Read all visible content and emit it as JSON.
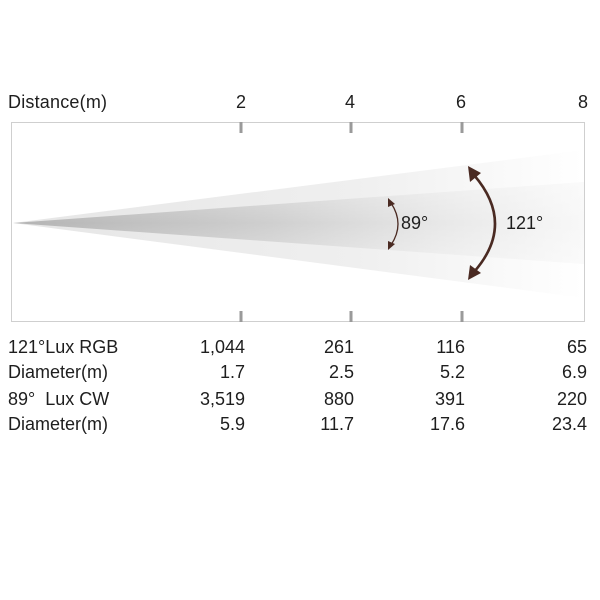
{
  "header": {
    "distance_label": "Distance(m)",
    "distance_ticks": [
      "2",
      "4",
      "6",
      "8"
    ]
  },
  "beam": {
    "inner_angle_label": "89°",
    "outer_angle_label": "121°",
    "arrow_color": "#4a2a22"
  },
  "table": {
    "rows": [
      {
        "label": "121°Lux RGB",
        "values": [
          "1,044",
          "261",
          "116",
          "65"
        ]
      },
      {
        "label": "Diameter(m)",
        "values": [
          "1.7",
          "2.5",
          "5.2",
          "6.9"
        ]
      },
      {
        "label": "89°  Lux CW",
        "values": [
          "3,519",
          "880",
          "391",
          "220"
        ]
      },
      {
        "label": "Diameter(m)",
        "values": [
          "5.9",
          "11.7",
          "17.6",
          "23.4"
        ]
      }
    ]
  }
}
